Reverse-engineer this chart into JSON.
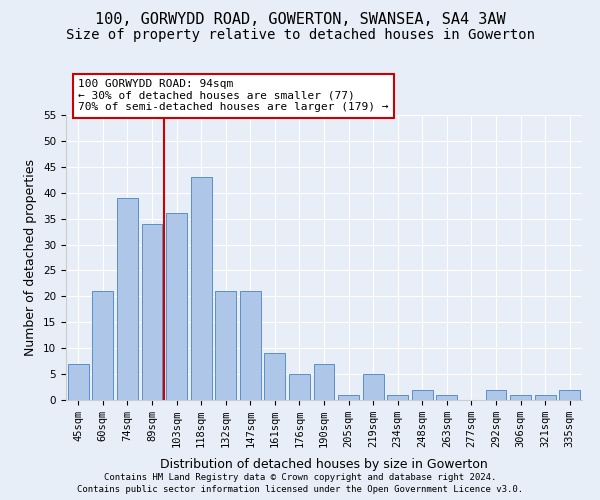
{
  "title1": "100, GORWYDD ROAD, GOWERTON, SWANSEA, SA4 3AW",
  "title2": "Size of property relative to detached houses in Gowerton",
  "xlabel": "Distribution of detached houses by size in Gowerton",
  "ylabel": "Number of detached properties",
  "categories": [
    "45sqm",
    "60sqm",
    "74sqm",
    "89sqm",
    "103sqm",
    "118sqm",
    "132sqm",
    "147sqm",
    "161sqm",
    "176sqm",
    "190sqm",
    "205sqm",
    "219sqm",
    "234sqm",
    "248sqm",
    "263sqm",
    "277sqm",
    "292sqm",
    "306sqm",
    "321sqm",
    "335sqm"
  ],
  "values": [
    7,
    21,
    39,
    34,
    36,
    43,
    21,
    21,
    9,
    5,
    7,
    1,
    5,
    1,
    2,
    1,
    0,
    2,
    1,
    1,
    2
  ],
  "bar_color": "#aec6e8",
  "bar_edge_color": "#5b8fc9",
  "vline_color": "#cc0000",
  "annotation_text": "100 GORWYDD ROAD: 94sqm\n← 30% of detached houses are smaller (77)\n70% of semi-detached houses are larger (179) →",
  "annotation_box_edge_color": "#cc0000",
  "annotation_fontsize": 8,
  "ylim": [
    0,
    55
  ],
  "yticks": [
    0,
    5,
    10,
    15,
    20,
    25,
    30,
    35,
    40,
    45,
    50,
    55
  ],
  "footnote1": "Contains HM Land Registry data © Crown copyright and database right 2024.",
  "footnote2": "Contains public sector information licensed under the Open Government Licence v3.0.",
  "bg_color": "#e8eef7",
  "plot_bg_color": "#e8eef7",
  "title_fontsize": 11,
  "subtitle_fontsize": 10,
  "axis_label_fontsize": 9,
  "tick_fontsize": 7.5,
  "footnote_fontsize": 6.5
}
